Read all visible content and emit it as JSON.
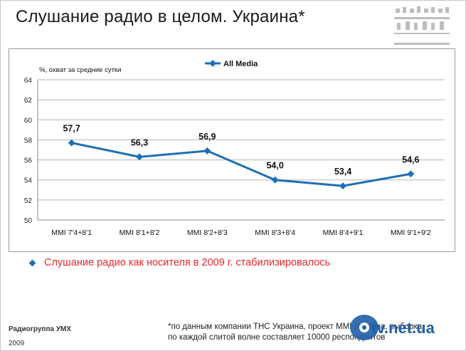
{
  "slide": {
    "title": "Слушание радио в целом. Украина*",
    "bullet": "Слушание радио как носителя в 2009 г. стабилизировалось",
    "company": "Радиогруппа УМХ",
    "year": "2009",
    "footnote_line1": "*по данным компании ТНС Украина, проект ММI Украина, выборка",
    "footnote_line2": "по каждой слитой волне составляет 10000 респондентов",
    "watermark": "tv.net.ua"
  },
  "colors": {
    "series": "#1f6fb5",
    "bullet_text": "#e8262b",
    "grid": "#b5b5b5"
  },
  "chart_data": {
    "type": "line",
    "ylabel": "%, охват за средние сутки",
    "categories": [
      "MMI 7'4+8'1",
      "MMI 8'1+8'2",
      "MMI 8'2+8'3",
      "MMI 8'3+8'4",
      "MMI 8'4+9'1",
      "MMI 9'1+9'2"
    ],
    "series": [
      {
        "name": "All Media",
        "values": [
          57.7,
          56.3,
          56.9,
          54.0,
          53.4,
          54.6
        ],
        "labels": [
          "57,7",
          "56,3",
          "56,9",
          "54,0",
          "53,4",
          "54,6"
        ]
      }
    ],
    "ylim": [
      50,
      64
    ],
    "yticks": [
      "50",
      "52",
      "54",
      "56",
      "58",
      "60",
      "62",
      "64"
    ],
    "grid": true,
    "legend": "top-center"
  }
}
